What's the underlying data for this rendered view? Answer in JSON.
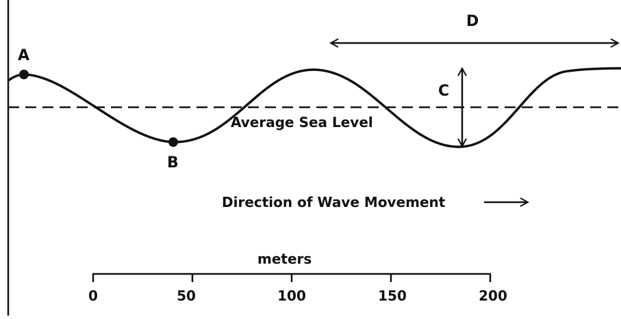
{
  "diagram": {
    "points": {
      "a": "A",
      "b": "B"
    },
    "wave_height_label": "C",
    "wavelength_label": "D",
    "sea_level_label": "Average Sea Level",
    "direction_label": "Direction of Wave Movement",
    "scale": {
      "title": "meters",
      "ticks": [
        "0",
        "50",
        "100",
        "150",
        "200"
      ]
    }
  },
  "colors": {
    "ink": "#111111",
    "background": "#ffffff"
  }
}
